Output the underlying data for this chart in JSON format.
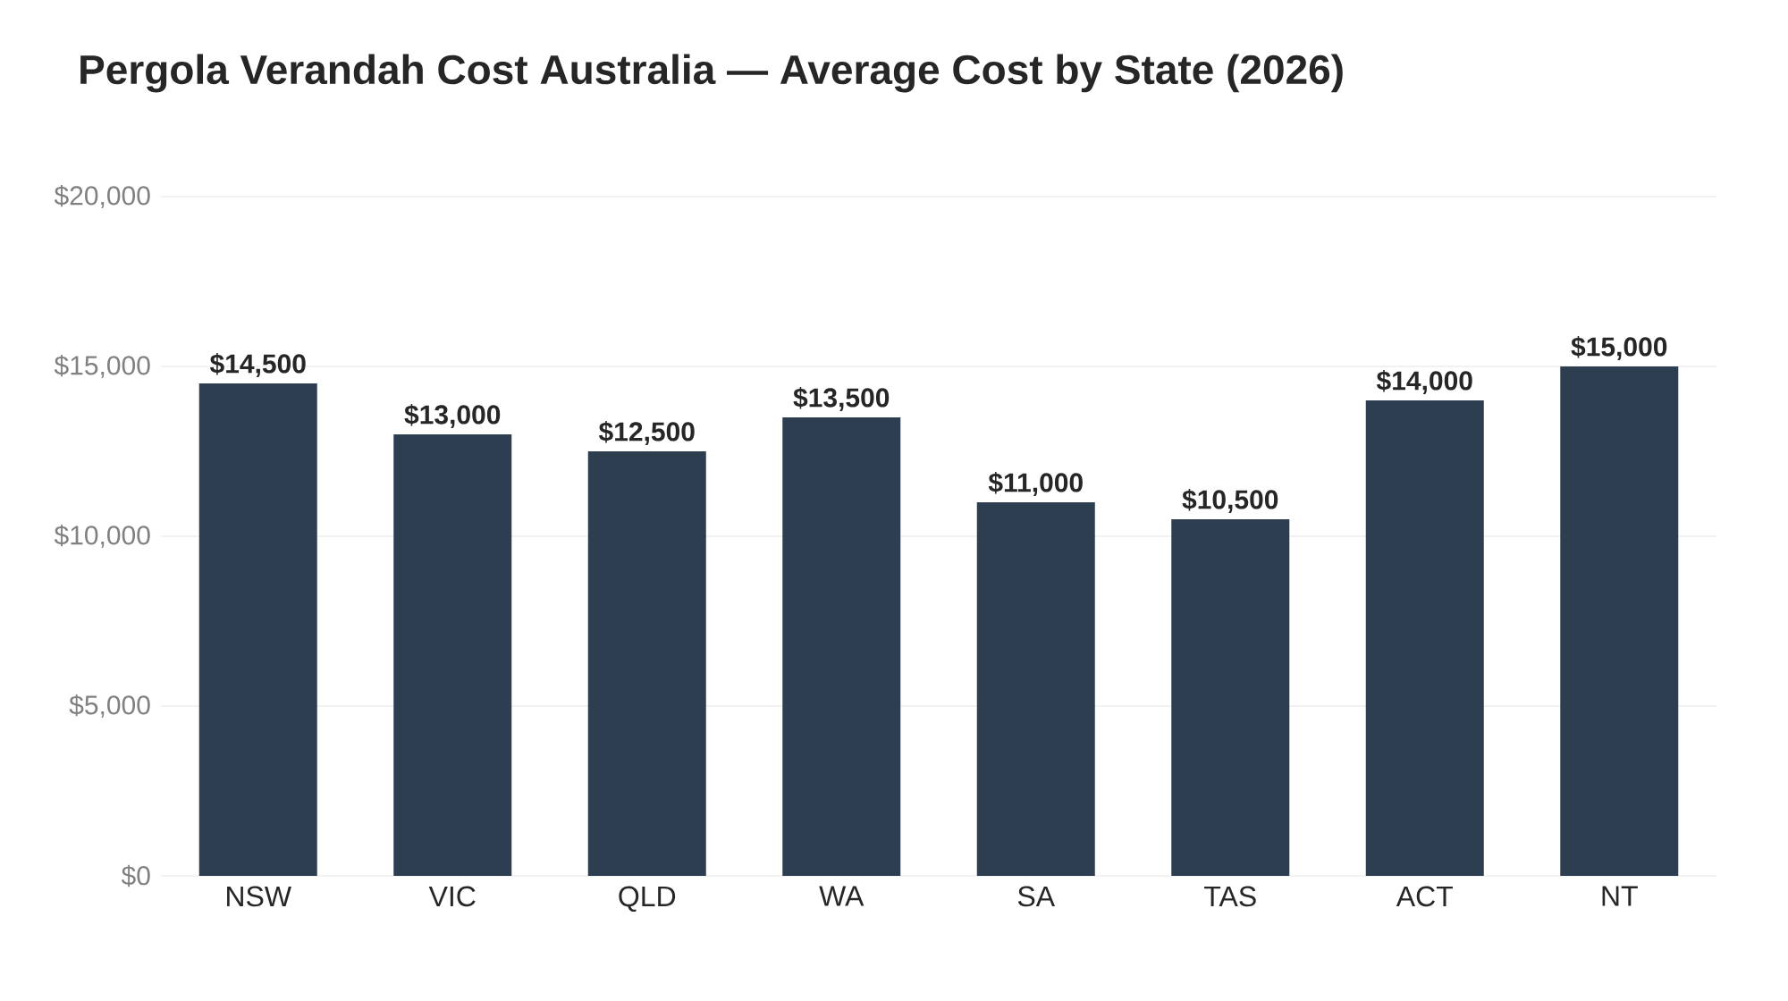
{
  "chart_data": {
    "type": "bar",
    "title": "Pergola Verandah Cost Australia — Average Cost by State (2026)",
    "categories": [
      "NSW",
      "VIC",
      "QLD",
      "WA",
      "SA",
      "TAS",
      "ACT",
      "NT"
    ],
    "values": [
      14500,
      13000,
      12500,
      13500,
      11000,
      10500,
      14000,
      15000
    ],
    "value_labels": [
      "$14,500",
      "$13,000",
      "$12,500",
      "$13,500",
      "$11,000",
      "$10,500",
      "$14,000",
      "$15,000"
    ],
    "color": "#2d3e50",
    "ylim": [
      0,
      20000
    ],
    "yticks": [
      {
        "value": 0,
        "label": "$0"
      },
      {
        "value": 5000,
        "label": "$5,000"
      },
      {
        "value": 10000,
        "label": "$10,000"
      },
      {
        "value": 15000,
        "label": "$15,000"
      },
      {
        "value": 20000,
        "label": "$20,000"
      }
    ],
    "grid": "y"
  }
}
